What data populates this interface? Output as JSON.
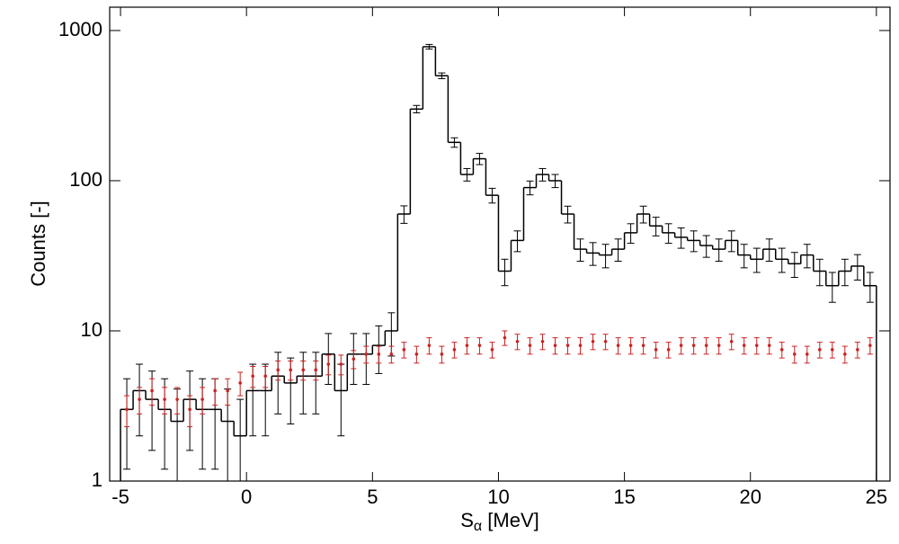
{
  "chart_data": {
    "type": "histogram",
    "y_label": "Counts [-]",
    "x_label_base": "S",
    "x_label_subscript": "α",
    "x_label_unit": "[MeV]",
    "log_y": true,
    "xlim": [
      -5.43,
      25.54
    ],
    "ylim": [
      1,
      1430
    ],
    "xticks": [
      -5,
      0,
      5,
      10,
      15,
      20,
      25
    ],
    "yticks": [
      1,
      10,
      100,
      1000
    ],
    "bins": [
      -5,
      -4.5,
      -4,
      -3.5,
      -3,
      -2.5,
      -2,
      -1.5,
      -1,
      -0.5,
      0,
      0.5,
      1,
      1.5,
      2,
      2.5,
      3,
      3.5,
      4,
      4.5,
      5,
      5.5,
      6,
      6.5,
      7,
      7.5,
      8,
      8.5,
      9,
      9.5,
      10,
      10.5,
      11,
      11.5,
      12,
      12.5,
      13,
      13.5,
      14,
      14.5,
      15,
      15.5,
      16,
      16.5,
      17,
      17.5,
      18,
      18.5,
      19,
      19.5,
      20,
      20.5,
      21,
      21.5,
      22,
      22.5,
      23,
      23.5,
      24,
      24.5,
      25
    ],
    "series": [
      {
        "color": "#000000",
        "style": "step",
        "values": [
          3,
          4,
          3.5,
          3,
          2.5,
          3.5,
          3,
          3,
          2.5,
          2,
          4,
          4,
          5,
          4.5,
          5,
          5,
          7,
          4,
          7,
          7,
          8,
          10,
          60,
          300,
          780,
          500,
          180,
          110,
          140,
          80,
          25,
          40,
          90,
          110,
          100,
          60,
          35,
          33,
          32,
          35,
          45,
          60,
          50,
          45,
          42,
          40,
          37,
          35,
          40,
          32,
          30,
          35,
          30,
          28,
          32,
          25,
          20,
          25,
          27,
          20
        ],
        "errors": [
          1.8,
          2,
          1.9,
          1.8,
          1.6,
          1.9,
          1.8,
          1.8,
          1.6,
          1.5,
          2,
          2,
          2.2,
          2.1,
          2.2,
          2.2,
          2.6,
          2,
          2.6,
          2.6,
          2.8,
          3.2,
          8,
          17,
          28,
          22,
          13,
          10.5,
          12,
          9,
          5,
          6.3,
          9.5,
          10.5,
          10,
          7.7,
          5.9,
          5.7,
          5.7,
          5.9,
          6.7,
          7.7,
          7.1,
          6.7,
          6.5,
          6.3,
          6.1,
          5.9,
          6.3,
          5.7,
          5.5,
          5.9,
          5.5,
          5.3,
          5.7,
          5,
          4.5,
          5,
          5.2,
          4.5
        ]
      },
      {
        "color": "#cc2222",
        "style": "points",
        "values": [
          3,
          3.5,
          4,
          3.5,
          3.5,
          3,
          3.5,
          4,
          4,
          4.5,
          5,
          5,
          5.5,
          5.5,
          5.5,
          5.5,
          6,
          6,
          6.5,
          7,
          7,
          7,
          7.5,
          7,
          8,
          7,
          7.5,
          8,
          8,
          7.5,
          9,
          8.5,
          8,
          8.5,
          8,
          8,
          8,
          8.5,
          8.5,
          8,
          8,
          8,
          7.5,
          7.5,
          8,
          8,
          8,
          8,
          8.5,
          8,
          8,
          8,
          7.5,
          7,
          7,
          7.5,
          7.5,
          7,
          7.5,
          8
        ],
        "errors": [
          0.7,
          0.7,
          0.8,
          0.7,
          0.7,
          0.7,
          0.7,
          0.8,
          0.8,
          0.8,
          0.8,
          0.8,
          0.8,
          0.8,
          0.8,
          0.8,
          0.9,
          0.9,
          0.9,
          0.9,
          0.9,
          0.9,
          0.9,
          0.9,
          1,
          0.9,
          0.9,
          1,
          1,
          0.9,
          1,
          1,
          1,
          1,
          1,
          1,
          1,
          1,
          1,
          1,
          1,
          1,
          0.9,
          0.9,
          1,
          1,
          1,
          1,
          1,
          1,
          1,
          1,
          0.9,
          0.9,
          0.9,
          0.9,
          0.9,
          0.9,
          0.9,
          1
        ]
      }
    ]
  }
}
